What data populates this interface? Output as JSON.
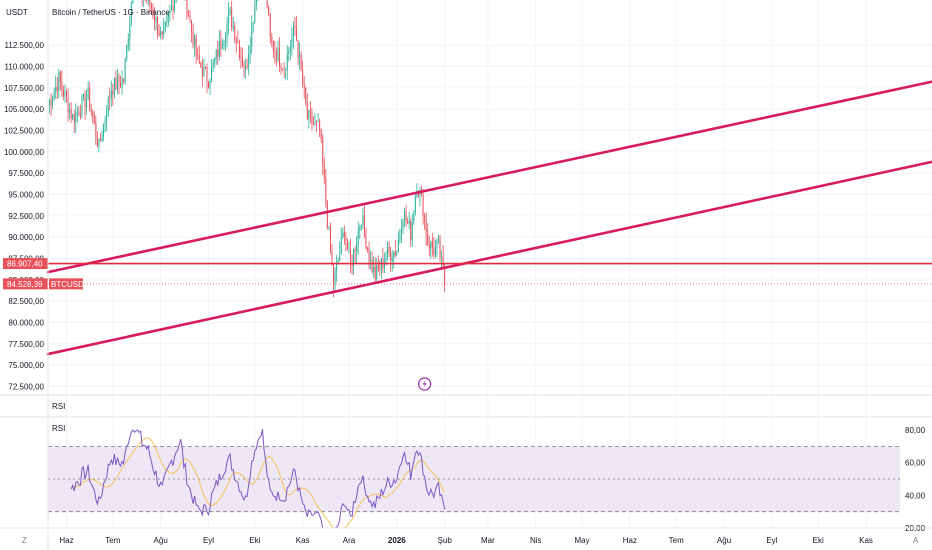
{
  "colors": {
    "up": "#2bb39a",
    "down": "#e8505a",
    "channel": "#d81b60",
    "hline": "#e02a3d",
    "price_badge": "#e8505a",
    "rsi_line": "#7e57c2",
    "rsi_ma": "#f9c15a",
    "rsi_band": "#ede7f6",
    "grid": "#f0f3fa",
    "lightning": "#9c27b0"
  },
  "icons": {
    "lightning": "lightning-icon",
    "zoom": "Z",
    "auto": "A"
  },
  "chart_data": [
    {
      "type": "candlestick",
      "title": "Bitcoin / TetherUS · 1G · Binance",
      "unit_label": "USDT",
      "symbol_badge": "BTCUSDT",
      "ylim": [
        71500,
        117800
      ],
      "y_ticks": [
        "112.500,00",
        "110.000,00",
        "107.500,00",
        "105.000,00",
        "102.500,00",
        "100.000,00",
        "97.500,00",
        "95.000,00",
        "92.500,00",
        "90.000,00",
        "87.500,00",
        "85.000,00",
        "82.500,00",
        "80.000,00",
        "77.500,00",
        "75.000,00",
        "72.500,00"
      ],
      "y_tick_values": [
        112500,
        110000,
        107500,
        105000,
        102500,
        100000,
        97500,
        95000,
        92500,
        90000,
        87500,
        85000,
        82500,
        80000,
        77500,
        75000,
        72500
      ],
      "x_labels": [
        "Haz",
        "Tem",
        "Ağu",
        "Eyl",
        "Eki",
        "Kas",
        "Ara",
        "2026",
        "Şub",
        "Mar",
        "Nis",
        "May",
        "Haz",
        "Tem",
        "Ağu",
        "Eyl",
        "Eki",
        "Kas"
      ],
      "x_dates": [
        "2025-06-01",
        "2025-07-01",
        "2025-08-01",
        "2025-09-01",
        "2025-10-01",
        "2025-11-01",
        "2025-12-01",
        "2026-01-01",
        "2026-02-01",
        "2026-03-01",
        "2026-04-01",
        "2026-05-01",
        "2026-06-01",
        "2026-07-01",
        "2026-08-01",
        "2026-09-01",
        "2026-10-01",
        "2026-11-01"
      ],
      "horizontal_line": {
        "price": 86907.4,
        "label": "86.907,40"
      },
      "last_price": {
        "price": 84528.39,
        "label": "84.528,39"
      },
      "channel_lines": [
        {
          "start": {
            "date": "2025-05-20",
            "price": 85900
          },
          "end": {
            "date": "2026-11-20",
            "price": 107300
          }
        },
        {
          "start": {
            "date": "2025-05-20",
            "price": 76300
          },
          "end": {
            "date": "2026-11-20",
            "price": 97900
          }
        }
      ],
      "anchors": [
        {
          "date": "2025-05-20",
          "price": 105500
        },
        {
          "date": "2025-05-27",
          "price": 108500
        },
        {
          "date": "2025-06-05",
          "price": 104000
        },
        {
          "date": "2025-06-15",
          "price": 106500
        },
        {
          "date": "2025-06-22",
          "price": 100500
        },
        {
          "date": "2025-06-30",
          "price": 107500
        },
        {
          "date": "2025-07-08",
          "price": 108500
        },
        {
          "date": "2025-07-14",
          "price": 119500
        },
        {
          "date": "2025-07-25",
          "price": 117500
        },
        {
          "date": "2025-08-02",
          "price": 113000
        },
        {
          "date": "2025-08-14",
          "price": 121000
        },
        {
          "date": "2025-08-25",
          "price": 110500
        },
        {
          "date": "2025-09-01",
          "price": 108500
        },
        {
          "date": "2025-09-15",
          "price": 116000
        },
        {
          "date": "2025-09-25",
          "price": 109500
        },
        {
          "date": "2025-10-06",
          "price": 124000
        },
        {
          "date": "2025-10-11",
          "price": 113000
        },
        {
          "date": "2025-10-20",
          "price": 110000
        },
        {
          "date": "2025-10-27",
          "price": 114500
        },
        {
          "date": "2025-11-04",
          "price": 104000
        },
        {
          "date": "2025-11-12",
          "price": 102500
        },
        {
          "date": "2025-11-17",
          "price": 92000
        },
        {
          "date": "2025-11-21",
          "price": 84500
        },
        {
          "date": "2025-11-28",
          "price": 91000
        },
        {
          "date": "2025-12-02",
          "price": 86500
        },
        {
          "date": "2025-12-09",
          "price": 92500
        },
        {
          "date": "2025-12-15",
          "price": 87000
        },
        {
          "date": "2025-12-18",
          "price": 85500
        },
        {
          "date": "2025-12-26",
          "price": 88000
        },
        {
          "date": "2026-01-01",
          "price": 88500
        },
        {
          "date": "2026-01-05",
          "price": 93000
        },
        {
          "date": "2026-01-10",
          "price": 90500
        },
        {
          "date": "2026-01-14",
          "price": 96500
        },
        {
          "date": "2026-01-18",
          "price": 93500
        },
        {
          "date": "2026-01-21",
          "price": 89500
        },
        {
          "date": "2026-01-25",
          "price": 88500
        },
        {
          "date": "2026-01-28",
          "price": 89000
        },
        {
          "date": "2026-02-01",
          "price": 84500
        }
      ]
    },
    {
      "type": "line",
      "pane_labels": [
        "RSI",
        "RSI"
      ],
      "ylim": [
        20,
        88
      ],
      "y_ticks": [
        "80,00",
        "60,00",
        "40,00",
        "20,00"
      ],
      "y_tick_values": [
        80,
        60,
        40,
        20
      ],
      "bands": {
        "upper": 70,
        "middle": 50,
        "lower": 30
      },
      "series": [
        {
          "values_from": "price"
        },
        {
          "values_from": "rsi_average"
        }
      ]
    }
  ]
}
